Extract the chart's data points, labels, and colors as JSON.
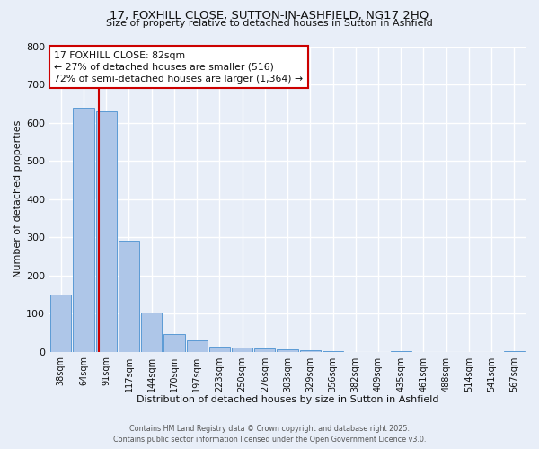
{
  "title_line1": "17, FOXHILL CLOSE, SUTTON-IN-ASHFIELD, NG17 2HQ",
  "title_line2": "Size of property relative to detached houses in Sutton in Ashfield",
  "xlabel": "Distribution of detached houses by size in Sutton in Ashfield",
  "ylabel": "Number of detached properties",
  "categories": [
    "38sqm",
    "64sqm",
    "91sqm",
    "117sqm",
    "144sqm",
    "170sqm",
    "197sqm",
    "223sqm",
    "250sqm",
    "276sqm",
    "303sqm",
    "329sqm",
    "356sqm",
    "382sqm",
    "409sqm",
    "435sqm",
    "461sqm",
    "488sqm",
    "514sqm",
    "541sqm",
    "567sqm"
  ],
  "values": [
    150,
    640,
    630,
    290,
    103,
    45,
    30,
    13,
    10,
    8,
    5,
    3,
    2,
    0,
    0,
    1,
    0,
    0,
    0,
    0,
    1
  ],
  "bar_color": "#aec6e8",
  "bar_edge_color": "#5b9bd5",
  "red_line_color": "#cc0000",
  "red_line_x": 1.67,
  "annotation_text": "17 FOXHILL CLOSE: 82sqm\n← 27% of detached houses are smaller (516)\n72% of semi-detached houses are larger (1,364) →",
  "annotation_box_color": "#ffffff",
  "annotation_box_edge": "#cc0000",
  "ylim": [
    0,
    800
  ],
  "yticks": [
    0,
    100,
    200,
    300,
    400,
    500,
    600,
    700,
    800
  ],
  "footer_line1": "Contains HM Land Registry data © Crown copyright and database right 2025.",
  "footer_line2": "Contains public sector information licensed under the Open Government Licence v3.0.",
  "bg_color": "#e8eef8",
  "grid_color": "#ffffff",
  "font_color": "#111111"
}
